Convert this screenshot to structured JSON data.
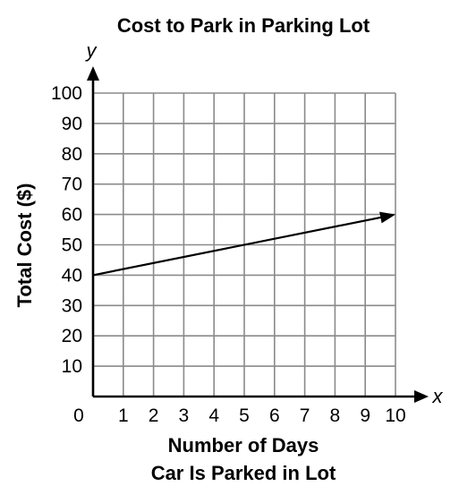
{
  "chart_data": {
    "type": "line",
    "title": "Cost to Park in Parking Lot",
    "xlabel_lines": [
      "Number of Days",
      "Car Is Parked in Lot"
    ],
    "ylabel": "Total Cost ($)",
    "x_axis_var": "x",
    "y_axis_var": "y",
    "xlim": [
      0,
      10
    ],
    "ylim": [
      0,
      100
    ],
    "x_ticks": [
      0,
      1,
      2,
      3,
      4,
      5,
      6,
      7,
      8,
      9,
      10
    ],
    "y_ticks": [
      10,
      20,
      30,
      40,
      50,
      60,
      70,
      80,
      90,
      100
    ],
    "grid": true,
    "series": [
      {
        "x": [
          0,
          10
        ],
        "y": [
          40,
          60
        ],
        "arrow_end": true
      }
    ]
  }
}
